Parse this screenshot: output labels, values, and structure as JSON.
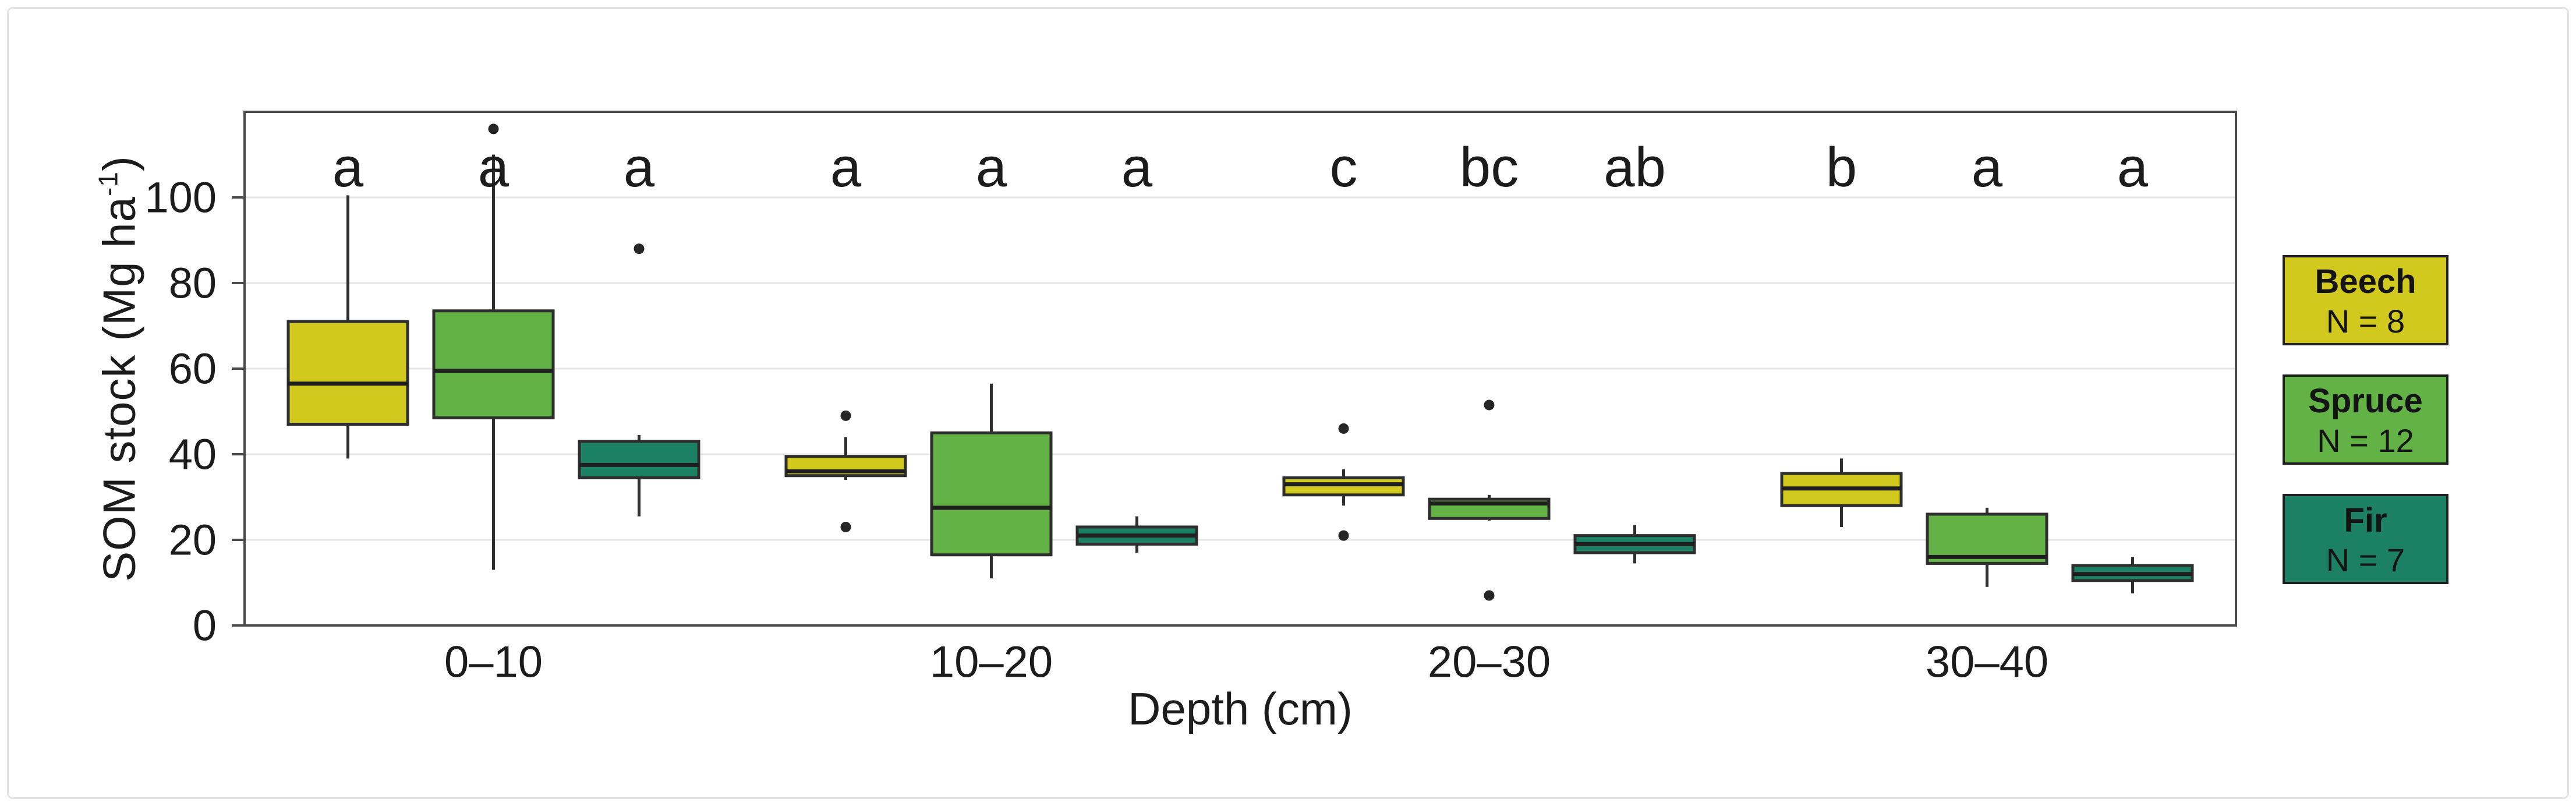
{
  "figure": {
    "y_axis_title": {
      "prefix": "SOM stock (Mg ha",
      "superscript": "-1",
      "suffix": ")"
    },
    "x_axis_title": "Depth (cm)"
  },
  "legend": {
    "items": [
      {
        "name": "Beech",
        "count_label": "N = 8",
        "color": "#d2c91e"
      },
      {
        "name": "Spruce",
        "count_label": "N = 12",
        "color": "#63b245"
      },
      {
        "name": "Fir",
        "count_label": "N = 7",
        "color": "#1c8164"
      }
    ]
  },
  "chart_data": {
    "type": "boxplot",
    "title": "",
    "xlabel": "Depth (cm)",
    "ylabel": "SOM stock (Mg ha⁻¹)",
    "ylim": [
      0,
      120
    ],
    "yticks": [
      0,
      20,
      40,
      60,
      80,
      100
    ],
    "grid": "horizontal light-gray lines at y ticks, white panel, dark panel border",
    "legend_position": "right",
    "categories": [
      "0–10",
      "10–20",
      "20–30",
      "30–40"
    ],
    "series_order": [
      "Beech",
      "Spruce",
      "Fir"
    ],
    "significance_letters": [
      [
        "a",
        "a",
        "a"
      ],
      [
        "a",
        "a",
        "a"
      ],
      [
        "c",
        "bc",
        "ab"
      ],
      [
        "b",
        "a",
        "a"
      ]
    ],
    "letter_y_value": 107,
    "series": [
      {
        "name": "Beech",
        "n": 8,
        "color": "#d2c91e",
        "boxes": [
          {
            "category": "0–10",
            "whisker_low": 39,
            "q1": 47,
            "median": 56.5,
            "q3": 71,
            "whisker_high": 100.5,
            "outliers": []
          },
          {
            "category": "10–20",
            "whisker_low": 34,
            "q1": 35,
            "median": 36,
            "q3": 39.5,
            "whisker_high": 44,
            "outliers": [
              49,
              23
            ]
          },
          {
            "category": "20–30",
            "whisker_low": 28,
            "q1": 30.5,
            "median": 33,
            "q3": 34.5,
            "whisker_high": 36.5,
            "outliers": [
              46,
              21
            ]
          },
          {
            "category": "30–40",
            "whisker_low": 23,
            "q1": 28,
            "median": 32,
            "q3": 35.5,
            "whisker_high": 39,
            "outliers": []
          }
        ]
      },
      {
        "name": "Spruce",
        "n": 12,
        "color": "#63b245",
        "boxes": [
          {
            "category": "0–10",
            "whisker_low": 13,
            "q1": 48.5,
            "median": 59.5,
            "q3": 73.5,
            "whisker_high": 110,
            "outliers": [
              116
            ]
          },
          {
            "category": "10–20",
            "whisker_low": 11,
            "q1": 16.5,
            "median": 27.5,
            "q3": 45,
            "whisker_high": 56.5,
            "outliers": []
          },
          {
            "category": "20–30",
            "whisker_low": 24.5,
            "q1": 25,
            "median": 28.5,
            "q3": 29.5,
            "whisker_high": 30.5,
            "outliers": [
              51.5,
              7
            ]
          },
          {
            "category": "30–40",
            "whisker_low": 9,
            "q1": 14.5,
            "median": 16,
            "q3": 26,
            "whisker_high": 27.5,
            "outliers": []
          }
        ]
      },
      {
        "name": "Fir",
        "n": 7,
        "color": "#1c8164",
        "boxes": [
          {
            "category": "0–10",
            "whisker_low": 25.5,
            "q1": 34.5,
            "median": 37.5,
            "q3": 43,
            "whisker_high": 44.5,
            "outliers": [
              88
            ]
          },
          {
            "category": "10–20",
            "whisker_low": 17,
            "q1": 19,
            "median": 21,
            "q3": 23,
            "whisker_high": 25.5,
            "outliers": []
          },
          {
            "category": "20–30",
            "whisker_low": 14.5,
            "q1": 17,
            "median": 19,
            "q3": 21,
            "whisker_high": 23.5,
            "outliers": []
          },
          {
            "category": "30–40",
            "whisker_low": 7.5,
            "q1": 10.5,
            "median": 12,
            "q3": 14,
            "whisker_high": 16,
            "outliers": []
          }
        ]
      }
    ]
  }
}
